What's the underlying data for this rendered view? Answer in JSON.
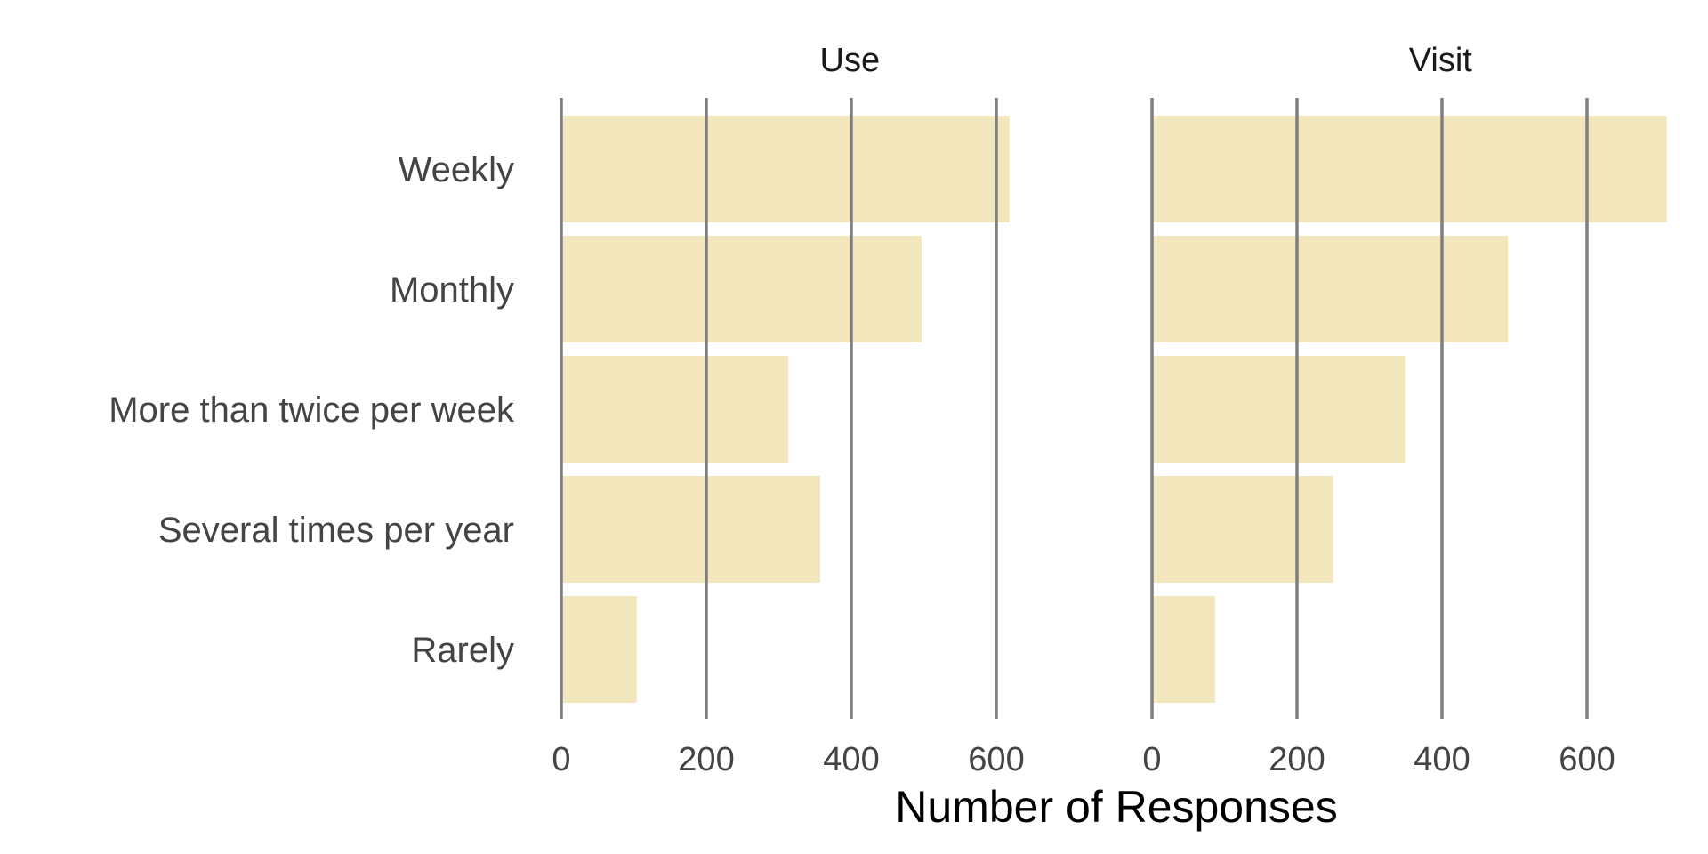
{
  "chart_data": {
    "type": "bar",
    "orientation": "horizontal",
    "categories": [
      "Weekly",
      "Monthly",
      "More than twice per week",
      "Several times per year",
      "Rarely"
    ],
    "facets": [
      {
        "title": "Use",
        "values": [
          618,
          497,
          313,
          357,
          104
        ]
      },
      {
        "title": "Visit",
        "values": [
          710,
          491,
          349,
          250,
          87
        ]
      }
    ],
    "xlabel": "Number of Responses",
    "ylabel": "",
    "xlim": [
      0,
      710
    ],
    "xticks": [
      0,
      200,
      400,
      600
    ],
    "xtick_labels": [
      "0",
      "200",
      "400",
      "600"
    ],
    "grid": "vertical",
    "bar_color": "#EFE2B0",
    "grid_color": "#7f7f7f"
  }
}
